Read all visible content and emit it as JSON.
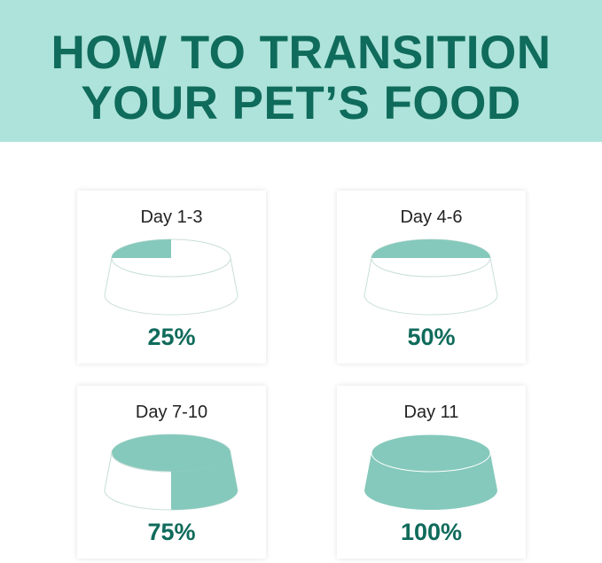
{
  "title": {
    "line1": "HOW TO TRANSITION",
    "line2": "YOUR PET’S FOOD"
  },
  "colors": {
    "band": "#ade3da",
    "accent": "#0f6b5b",
    "fill": "#85c9bc"
  },
  "steps": [
    {
      "day": "Day 1-3",
      "percent_label": "25%",
      "fill_percent": 25
    },
    {
      "day": "Day 4-6",
      "percent_label": "50%",
      "fill_percent": 50
    },
    {
      "day": "Day 7-10",
      "percent_label": "75%",
      "fill_percent": 75
    },
    {
      "day": "Day 11",
      "percent_label": "100%",
      "fill_percent": 100
    }
  ]
}
